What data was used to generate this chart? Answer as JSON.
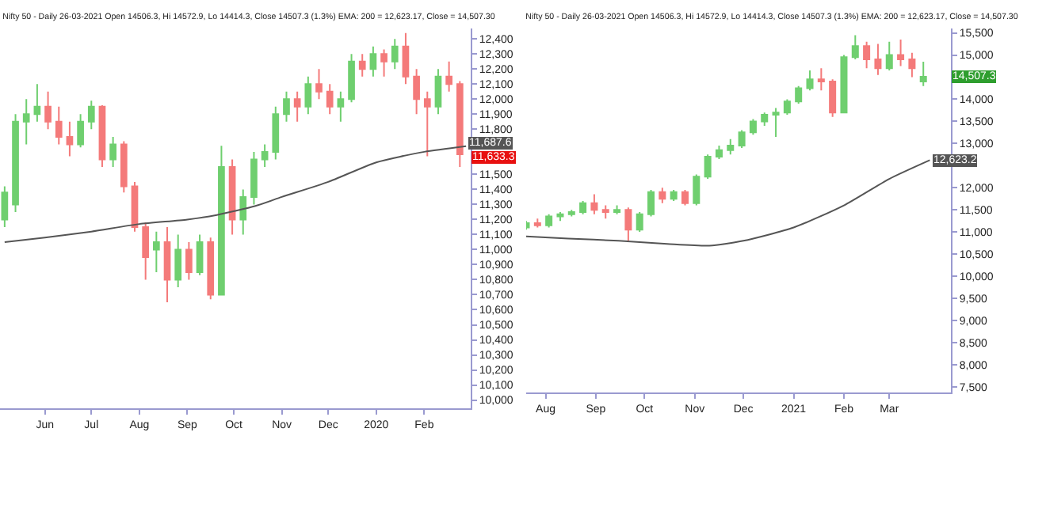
{
  "chart_data": [
    {
      "type": "candlestick",
      "title": "Nifty 50 - Daily 26-03-2021 Open 14506.3, Hi 14572.9, Lo 14414.3, Close 14507.3 (1.3%) EMA: 200 = 12,623.17, Close = 14,507.30",
      "x": [
        "2019-05-06",
        "2019-05-13",
        "2019-05-20",
        "2019-05-27",
        "2019-06-03",
        "2019-06-10",
        "2019-06-17",
        "2019-06-24",
        "2019-07-01",
        "2019-07-08",
        "2019-07-15",
        "2019-07-22",
        "2019-07-29",
        "2019-08-05",
        "2019-08-12",
        "2019-08-19",
        "2019-08-26",
        "2019-09-02",
        "2019-09-09",
        "2019-09-16",
        "2019-09-23",
        "2019-09-30",
        "2019-10-07",
        "2019-10-14",
        "2019-10-21",
        "2019-10-28",
        "2019-11-04",
        "2019-11-11",
        "2019-11-18",
        "2019-11-25",
        "2019-12-02",
        "2019-12-09",
        "2019-12-16",
        "2019-12-23",
        "2019-12-30",
        "2020-01-06",
        "2020-01-13",
        "2020-01-20",
        "2020-01-27",
        "2020-02-03",
        "2020-02-10",
        "2020-02-17",
        "2020-02-24"
      ],
      "ohlc": [
        [
          11200,
          11420,
          11150,
          11380
        ],
        [
          11300,
          11900,
          11250,
          11850
        ],
        [
          11850,
          12000,
          11700,
          11900
        ],
        [
          11900,
          12100,
          11850,
          11950
        ],
        [
          11950,
          12050,
          11800,
          11850
        ],
        [
          11850,
          11950,
          11700,
          11750
        ],
        [
          11750,
          11850,
          11620,
          11700
        ],
        [
          11700,
          11900,
          11680,
          11850
        ],
        [
          11850,
          11990,
          11800,
          11950
        ],
        [
          11950,
          11960,
          11550,
          11600
        ],
        [
          11600,
          11750,
          11550,
          11700
        ],
        [
          11700,
          11720,
          11380,
          11420
        ],
        [
          11420,
          11450,
          11120,
          11150
        ],
        [
          11150,
          11180,
          10800,
          10950
        ],
        [
          11000,
          11120,
          10850,
          11050
        ],
        [
          11050,
          11150,
          10650,
          10800
        ],
        [
          10800,
          11100,
          10750,
          11000
        ],
        [
          11000,
          11050,
          10800,
          10850
        ],
        [
          10850,
          11100,
          10830,
          11050
        ],
        [
          11050,
          11080,
          10670,
          10700
        ],
        [
          10700,
          11690,
          10700,
          11550
        ],
        [
          11550,
          11600,
          11100,
          11200
        ],
        [
          11200,
          11400,
          11100,
          11350
        ],
        [
          11350,
          11650,
          11300,
          11600
        ],
        [
          11600,
          11700,
          11550,
          11650
        ],
        [
          11650,
          11950,
          11600,
          11900
        ],
        [
          11900,
          12050,
          11850,
          12000
        ],
        [
          12000,
          12050,
          11850,
          11950
        ],
        [
          11950,
          12150,
          11900,
          12100
        ],
        [
          12100,
          12200,
          12000,
          12050
        ],
        [
          12050,
          12100,
          11900,
          11950
        ],
        [
          11950,
          12050,
          11850,
          12000
        ],
        [
          12000,
          12300,
          11980,
          12250
        ],
        [
          12250,
          12300,
          12150,
          12200
        ],
        [
          12200,
          12350,
          12150,
          12300
        ],
        [
          12300,
          12330,
          12150,
          12250
        ],
        [
          12250,
          12400,
          12200,
          12350
        ],
        [
          12350,
          12440,
          12100,
          12150
        ],
        [
          12150,
          12200,
          11900,
          12000
        ],
        [
          12000,
          12050,
          11620,
          11950
        ],
        [
          11950,
          12200,
          11900,
          12150
        ],
        [
          12150,
          12250,
          12050,
          12100
        ],
        [
          12100,
          12120,
          11550,
          11633.3
        ]
      ],
      "series": [
        {
          "type": "line",
          "color": "#555555",
          "x": [
            "2019-05-06",
            "2019-06-01",
            "2019-07-01",
            "2019-08-01",
            "2019-09-01",
            "2019-09-20",
            "2019-10-15",
            "2019-11-01",
            "2019-12-01",
            "2020-01-01",
            "2020-02-01",
            "2020-02-28"
          ],
          "values": [
            11050,
            11080,
            11120,
            11170,
            11200,
            11230,
            11290,
            11350,
            11450,
            11580,
            11650,
            11687.6
          ],
          "value_labels": [
            null,
            null,
            null,
            null,
            null,
            null,
            null,
            null,
            null,
            null,
            null,
            "11,687.6"
          ]
        }
      ],
      "xlim": [
        "2019-05-03",
        "2020-03-02"
      ],
      "xticks": [
        {
          "value": "2019-06-01",
          "label": "Jun"
        },
        {
          "value": "2019-07-01",
          "label": "Jul"
        },
        {
          "value": "2019-08-01",
          "label": "Aug"
        },
        {
          "value": "2019-09-01",
          "label": "Sep"
        },
        {
          "value": "2019-10-01",
          "label": "Oct"
        },
        {
          "value": "2019-11-01",
          "label": "Nov"
        },
        {
          "value": "2019-12-01",
          "label": "Dec"
        },
        {
          "value": "2020-01-01",
          "label": "2020"
        },
        {
          "value": "2020-02-01",
          "label": "Feb"
        }
      ],
      "ylim": [
        9945,
        12470
      ],
      "yticks": [
        {
          "value": 10000,
          "label": "10,000"
        },
        {
          "value": 10100,
          "label": "10,100"
        },
        {
          "value": 10200,
          "label": "10,200"
        },
        {
          "value": 10300,
          "label": "10,300"
        },
        {
          "value": 10400,
          "label": "10,400"
        },
        {
          "value": 10500,
          "label": "10,500"
        },
        {
          "value": 10600,
          "label": "10,600"
        },
        {
          "value": 10700,
          "label": "10,700"
        },
        {
          "value": 10800,
          "label": "10,800"
        },
        {
          "value": 10900,
          "label": "10,900"
        },
        {
          "value": 11000,
          "label": "11,000"
        },
        {
          "value": 11100,
          "label": "11,100"
        },
        {
          "value": 11200,
          "label": "11,200"
        },
        {
          "value": 11300,
          "label": "11,300"
        },
        {
          "value": 11400,
          "label": "11,400"
        },
        {
          "value": 11500,
          "label": "11,500"
        },
        {
          "value": 11600,
          "label": null
        },
        {
          "value": 11700,
          "label": null
        },
        {
          "value": 11800,
          "label": "11,800"
        },
        {
          "value": 11900,
          "label": "11,900"
        },
        {
          "value": 12000,
          "label": "12,000"
        },
        {
          "value": 12100,
          "label": "12,100"
        },
        {
          "value": 12200,
          "label": "12,200"
        },
        {
          "value": 12300,
          "label": "12,300"
        },
        {
          "value": 12400,
          "label": "12,400"
        }
      ],
      "value_labels": [
        null,
        null,
        null,
        null,
        null,
        null,
        null,
        null,
        null,
        null,
        null,
        null,
        null,
        null,
        null,
        null,
        null,
        null,
        null,
        null,
        null,
        null,
        null,
        null,
        null,
        null,
        null,
        null,
        null,
        null,
        null,
        null,
        null,
        null,
        null,
        null,
        null,
        null,
        null,
        null,
        null,
        null,
        "11,633.3"
      ]
    },
    {
      "type": "candlestick",
      "title": "Nifty 50 - Daily 26-03-2021 Open 14506.3, Hi 14572.9, Lo 14414.3, Close 14507.3 (1.3%) EMA: 200 = 12,623.17, Close = 14,507.30",
      "x": [
        "2020-07-20",
        "2020-07-27",
        "2020-08-03",
        "2020-08-10",
        "2020-08-17",
        "2020-08-24",
        "2020-08-31",
        "2020-09-07",
        "2020-09-14",
        "2020-09-21",
        "2020-09-28",
        "2020-10-05",
        "2020-10-12",
        "2020-10-19",
        "2020-10-26",
        "2020-11-02",
        "2020-11-09",
        "2020-11-16",
        "2020-11-23",
        "2020-11-30",
        "2020-12-07",
        "2020-12-14",
        "2020-12-21",
        "2020-12-28",
        "2021-01-04",
        "2021-01-11",
        "2021-01-18",
        "2021-01-25",
        "2021-02-01",
        "2021-02-08",
        "2021-02-15",
        "2021-02-22",
        "2021-03-01",
        "2021-03-08",
        "2021-03-15",
        "2021-03-22"
      ],
      "ohlc": [
        [
          11100,
          11250,
          11050,
          11200
        ],
        [
          11200,
          11300,
          11100,
          11150
        ],
        [
          11150,
          11400,
          11100,
          11350
        ],
        [
          11350,
          11450,
          11250,
          11400
        ],
        [
          11400,
          11500,
          11350,
          11450
        ],
        [
          11450,
          11700,
          11400,
          11650
        ],
        [
          11650,
          11850,
          11400,
          11500
        ],
        [
          11500,
          11600,
          11300,
          11450
        ],
        [
          11450,
          11600,
          11400,
          11500
        ],
        [
          11500,
          11550,
          10800,
          11050
        ],
        [
          11050,
          11450,
          11000,
          11400
        ],
        [
          11400,
          11950,
          11350,
          11900
        ],
        [
          11900,
          12000,
          11650,
          11750
        ],
        [
          11750,
          11950,
          11700,
          11900
        ],
        [
          11900,
          11950,
          11600,
          11650
        ],
        [
          11650,
          12300,
          11600,
          12250
        ],
        [
          12250,
          12750,
          12200,
          12700
        ],
        [
          12700,
          12950,
          12650,
          12850
        ],
        [
          12850,
          13100,
          12750,
          12950
        ],
        [
          12950,
          13300,
          12900,
          13250
        ],
        [
          13250,
          13550,
          13200,
          13500
        ],
        [
          13500,
          13700,
          13400,
          13650
        ],
        [
          13650,
          13800,
          13150,
          13700
        ],
        [
          13700,
          14000,
          13650,
          13950
        ],
        [
          13950,
          14300,
          13900,
          14250
        ],
        [
          14250,
          14650,
          14200,
          14450
        ],
        [
          14450,
          14700,
          14200,
          14400
        ],
        [
          14400,
          14450,
          13600,
          13700
        ],
        [
          13700,
          15000,
          13700,
          14950
        ],
        [
          14950,
          15450,
          14900,
          15200
        ],
        [
          15200,
          15300,
          14700,
          14900
        ],
        [
          14900,
          15250,
          14550,
          14700
        ],
        [
          14700,
          15300,
          14650,
          15000
        ],
        [
          15000,
          15350,
          14750,
          14900
        ],
        [
          14900,
          15050,
          14500,
          14700
        ],
        [
          14400,
          14850,
          14300,
          14507.3
        ]
      ],
      "series": [
        {
          "type": "line",
          "color": "#555555",
          "x": [
            "2020-07-20",
            "2020-08-15",
            "2020-09-15",
            "2020-10-15",
            "2020-11-10",
            "2020-12-01",
            "2021-01-01",
            "2021-02-01",
            "2021-03-01",
            "2021-03-26"
          ],
          "values": [
            10900,
            10850,
            10800,
            10730,
            10690,
            10800,
            11100,
            11600,
            12200,
            12623.17
          ],
          "value_labels": [
            null,
            null,
            null,
            null,
            null,
            null,
            null,
            null,
            null,
            "12,623.2"
          ]
        }
      ],
      "xlim": [
        "2020-07-20",
        "2021-04-08"
      ],
      "xticks": [
        {
          "value": "2020-08-01",
          "label": "Aug"
        },
        {
          "value": "2020-09-01",
          "label": "Sep"
        },
        {
          "value": "2020-10-01",
          "label": "Oct"
        },
        {
          "value": "2020-11-01",
          "label": "Nov"
        },
        {
          "value": "2020-12-01",
          "label": "Dec"
        },
        {
          "value": "2021-01-01",
          "label": "2021"
        },
        {
          "value": "2021-02-01",
          "label": "Feb"
        },
        {
          "value": "2021-03-01",
          "label": "Mar"
        }
      ],
      "ylim": [
        7370,
        15600
      ],
      "yticks": [
        {
          "value": 7500,
          "label": "7,500"
        },
        {
          "value": 8000,
          "label": "8,000"
        },
        {
          "value": 8500,
          "label": "8,500"
        },
        {
          "value": 9000,
          "label": "9,000"
        },
        {
          "value": 9500,
          "label": "9,500"
        },
        {
          "value": 10000,
          "label": "10,000"
        },
        {
          "value": 10500,
          "label": "10,500"
        },
        {
          "value": 11000,
          "label": "11,000"
        },
        {
          "value": 11500,
          "label": "11,500"
        },
        {
          "value": 12000,
          "label": "12,000"
        },
        {
          "value": 12500,
          "label": null
        },
        {
          "value": 13000,
          "label": "13,000"
        },
        {
          "value": 13500,
          "label": "13,500"
        },
        {
          "value": 14000,
          "label": "14,000"
        },
        {
          "value": 14500,
          "label": null
        },
        {
          "value": 15000,
          "label": "15,000"
        },
        {
          "value": 15500,
          "label": "15,500"
        }
      ],
      "value_labels": [
        null,
        null,
        null,
        null,
        null,
        null,
        null,
        null,
        null,
        null,
        null,
        null,
        null,
        null,
        null,
        null,
        null,
        null,
        null,
        null,
        null,
        null,
        null,
        null,
        null,
        null,
        null,
        null,
        null,
        null,
        null,
        null,
        null,
        null,
        null,
        "14,507.3"
      ]
    }
  ]
}
